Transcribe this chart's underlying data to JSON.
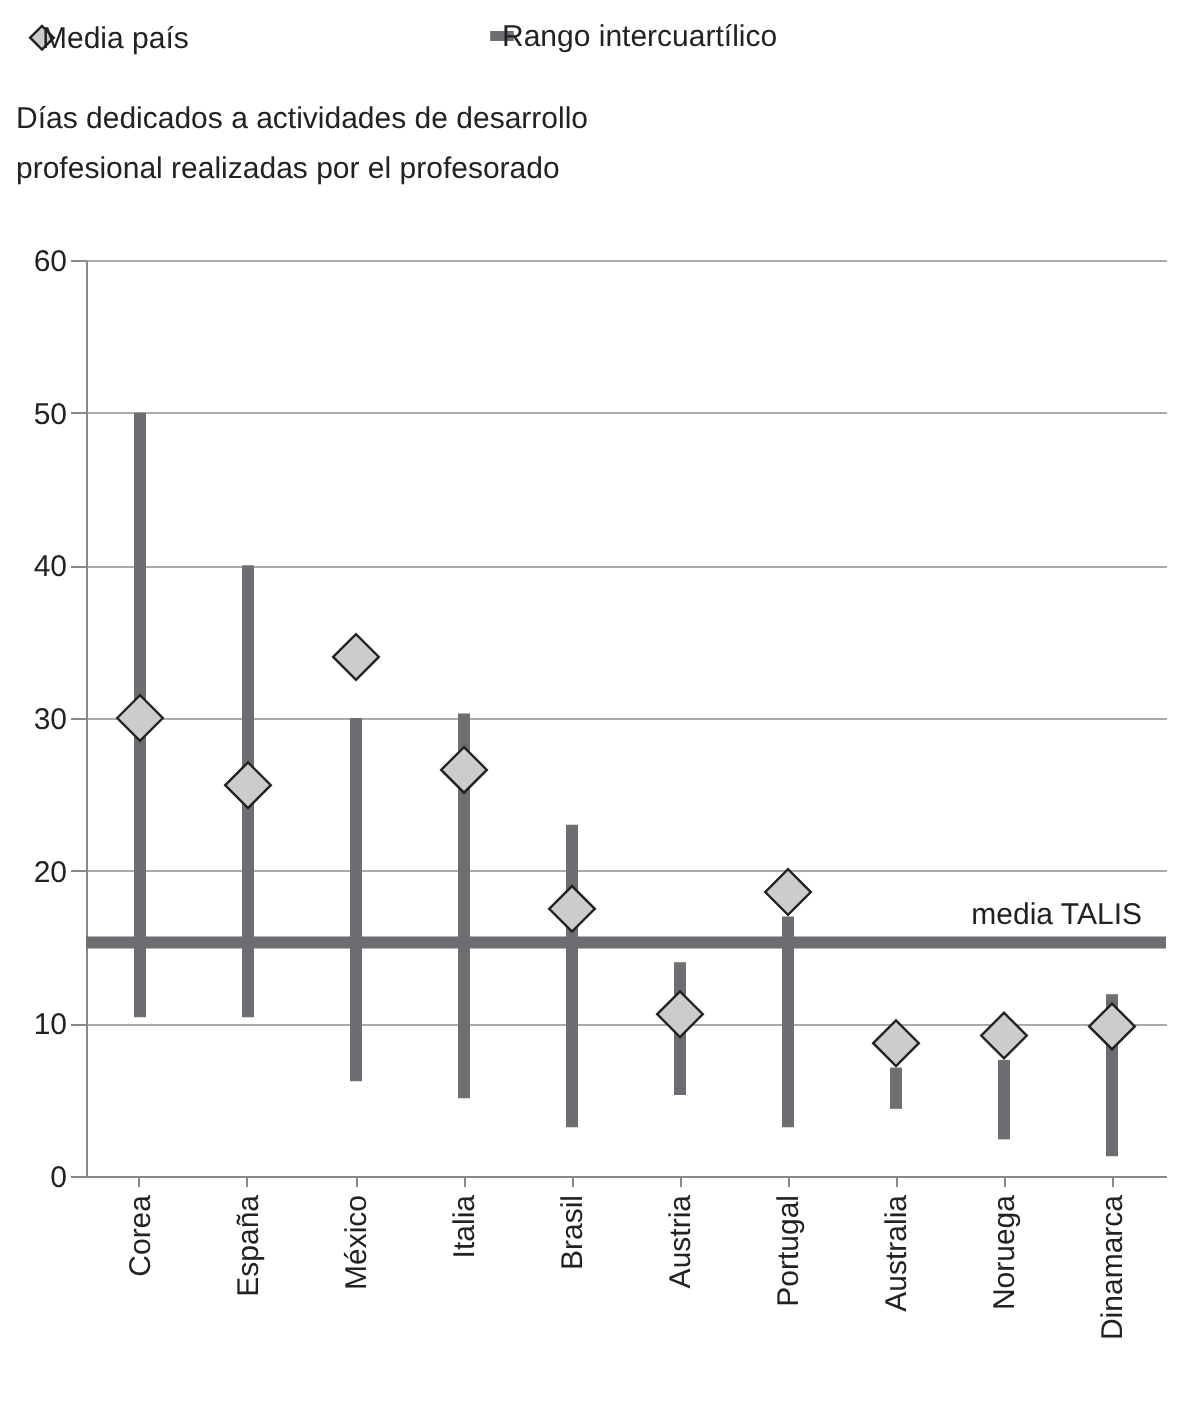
{
  "chart_data": {
    "type": "bar",
    "title": "Días dedicados a actividades de desarrollo profesional realizadas por el profesorado",
    "categories": [
      "Corea",
      "España",
      "México",
      "Italia",
      "Brasil",
      "Austria",
      "Portugal",
      "Australia",
      "Noruega",
      "Dinamarca"
    ],
    "series": [
      {
        "name": "Media país",
        "type": "scatter",
        "marker": "diamond",
        "color": "#cccccc",
        "x": [
          "Corea",
          "España",
          "México",
          "Italia",
          "Brasil",
          "Austria",
          "Portugal",
          "Australia",
          "Noruega",
          "Dinamarca"
        ],
        "values": [
          30,
          25.6,
          34,
          26.6,
          17.5,
          10.6,
          18.6,
          8.7,
          9.2,
          9.8
        ]
      },
      {
        "name": "Rango intercuartílico",
        "type": "bar",
        "color": "#6d6e71",
        "base": [
          10.4,
          10.4,
          6.2,
          5.1,
          3.2,
          5.3,
          3.2,
          4.4,
          2.4,
          1.3
        ],
        "values": [
          39.6,
          29.6,
          23.8,
          25.2,
          19.8,
          8.7,
          13.8,
          2.7,
          5.2,
          10.6
        ]
      }
    ],
    "ref_lines": [
      {
        "axis": "y",
        "value": 15.3,
        "label": "media TALIS",
        "color": "#6d6e71"
      }
    ],
    "ylim": [
      0,
      60
    ],
    "yticks": [
      0,
      10,
      20,
      30,
      40,
      50,
      60
    ],
    "grid": "y",
    "legend": "top left"
  }
}
